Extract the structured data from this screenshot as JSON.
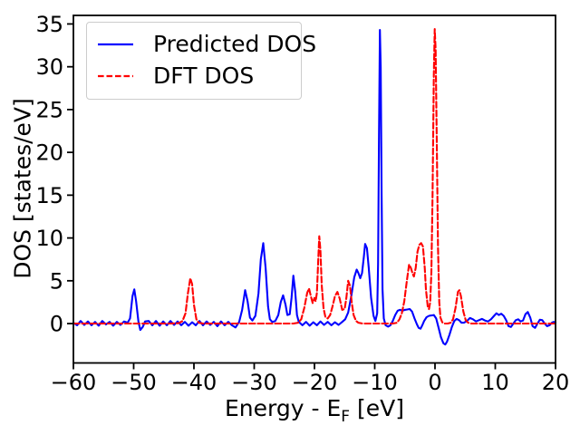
{
  "chart_data": {
    "type": "line",
    "title": "",
    "xlabel": "Energy - E_F [eV]",
    "xlabel_parts": {
      "main": "Energy - E",
      "sub": "F",
      "rest": " [eV]"
    },
    "ylabel": "DOS [states/eV]",
    "xlim": [
      -60,
      20
    ],
    "ylim": [
      -4.6,
      36
    ],
    "xticks": [
      -60,
      -50,
      -40,
      -30,
      -20,
      -10,
      0,
      10,
      20
    ],
    "yticks": [
      0,
      5,
      10,
      15,
      20,
      25,
      30,
      35
    ],
    "grid": false,
    "legend_position": "upper left",
    "background_color": "#ffffff",
    "axis_color": "#000000",
    "series": [
      {
        "name": "Predicted DOS",
        "color": "#0000ff",
        "style": "solid",
        "points": [
          [
            -60,
            0.1
          ],
          [
            -59.4,
            -0.2
          ],
          [
            -58.8,
            0.3
          ],
          [
            -58.2,
            -0.15
          ],
          [
            -57.6,
            0.25
          ],
          [
            -57,
            -0.2
          ],
          [
            -56.4,
            0.2
          ],
          [
            -55.8,
            -0.25
          ],
          [
            -55.2,
            0.3
          ],
          [
            -54.6,
            -0.1
          ],
          [
            -54,
            0.2
          ],
          [
            -53.4,
            -0.25
          ],
          [
            -52.8,
            0.2
          ],
          [
            -52.2,
            -0.15
          ],
          [
            -51.6,
            0.25
          ],
          [
            -51,
            0.1
          ],
          [
            -50.6,
            0.6
          ],
          [
            -50.2,
            3.2
          ],
          [
            -49.9,
            4.0
          ],
          [
            -49.6,
            2.6
          ],
          [
            -49.2,
            0.2
          ],
          [
            -48.9,
            -0.75
          ],
          [
            -48.5,
            -0.4
          ],
          [
            -48.1,
            0.25
          ],
          [
            -47.5,
            0.3
          ],
          [
            -46.9,
            -0.2
          ],
          [
            -46.3,
            0.3
          ],
          [
            -45.7,
            -0.25
          ],
          [
            -45.1,
            0.25
          ],
          [
            -44.5,
            -0.2
          ],
          [
            -43.9,
            0.3
          ],
          [
            -43.3,
            -0.15
          ],
          [
            -42.7,
            0.25
          ],
          [
            -42.1,
            -0.2
          ],
          [
            -41.5,
            0.2
          ],
          [
            -40.9,
            -0.25
          ],
          [
            -40.3,
            0.15
          ],
          [
            -39.7,
            -0.2
          ],
          [
            -39.1,
            0.3
          ],
          [
            -38.5,
            -0.2
          ],
          [
            -37.9,
            0.25
          ],
          [
            -37.3,
            -0.15
          ],
          [
            -36.7,
            0.2
          ],
          [
            -36.1,
            -0.3
          ],
          [
            -35.5,
            0.25
          ],
          [
            -34.9,
            -0.2
          ],
          [
            -34.3,
            0.2
          ],
          [
            -33.7,
            -0.2
          ],
          [
            -33.1,
            -0.45
          ],
          [
            -32.5,
            0.2
          ],
          [
            -32,
            1.6
          ],
          [
            -31.5,
            3.9
          ],
          [
            -31.1,
            2.6
          ],
          [
            -30.7,
            0.7
          ],
          [
            -30.3,
            0.35
          ],
          [
            -29.8,
            0.9
          ],
          [
            -29.3,
            3.5
          ],
          [
            -28.9,
            7.5
          ],
          [
            -28.5,
            9.4
          ],
          [
            -28.1,
            6.5
          ],
          [
            -27.7,
            2
          ],
          [
            -27.4,
            0.5
          ],
          [
            -27,
            0.2
          ],
          [
            -26.5,
            0.3
          ],
          [
            -26,
            1
          ],
          [
            -25.6,
            2.5
          ],
          [
            -25.2,
            3.3
          ],
          [
            -24.8,
            2.2
          ],
          [
            -24.5,
            1
          ],
          [
            -24.1,
            1.1
          ],
          [
            -23.8,
            3
          ],
          [
            -23.5,
            5.6
          ],
          [
            -23.2,
            3.8
          ],
          [
            -22.9,
            1
          ],
          [
            -22.6,
            0.2
          ],
          [
            -22,
            -0.2
          ],
          [
            -21.4,
            0.2
          ],
          [
            -20.8,
            -0.25
          ],
          [
            -20.2,
            0.15
          ],
          [
            -19.6,
            -0.2
          ],
          [
            -19,
            0.25
          ],
          [
            -18.4,
            -0.15
          ],
          [
            -17.8,
            0.2
          ],
          [
            -17.2,
            -0.2
          ],
          [
            -16.6,
            0.15
          ],
          [
            -16,
            -0.15
          ],
          [
            -15.4,
            0.2
          ],
          [
            -14.9,
            0.5
          ],
          [
            -14.4,
            1.3
          ],
          [
            -13.9,
            3.2
          ],
          [
            -13.4,
            5.4
          ],
          [
            -13,
            6.3
          ],
          [
            -12.7,
            5.9
          ],
          [
            -12.4,
            5.3
          ],
          [
            -12.1,
            5.9
          ],
          [
            -11.8,
            7.8
          ],
          [
            -11.6,
            9.3
          ],
          [
            -11.3,
            8.8
          ],
          [
            -11,
            6.5
          ],
          [
            -10.6,
            3
          ],
          [
            -10.2,
            0.9
          ],
          [
            -9.9,
            0.3
          ],
          [
            -9.6,
            1.2
          ],
          [
            -9.45,
            7
          ],
          [
            -9.3,
            22
          ],
          [
            -9.15,
            34.3
          ],
          [
            -9,
            30
          ],
          [
            -8.85,
            15
          ],
          [
            -8.7,
            4
          ],
          [
            -8.5,
            0.6
          ],
          [
            -8.2,
            -0.2
          ],
          [
            -7.8,
            -0.35
          ],
          [
            -7.4,
            -0.2
          ],
          [
            -7,
            0.3
          ],
          [
            -6.6,
            1
          ],
          [
            -6.2,
            1.5
          ],
          [
            -5.8,
            1.6
          ],
          [
            -5.4,
            1.5
          ],
          [
            -5,
            1.6
          ],
          [
            -4.6,
            1.65
          ],
          [
            -4.2,
            1.7
          ],
          [
            -3.8,
            1.4
          ],
          [
            -3.4,
            0.6
          ],
          [
            -3,
            -0.1
          ],
          [
            -2.7,
            -0.5
          ],
          [
            -2.4,
            -0.6
          ],
          [
            -2.1,
            -0.2
          ],
          [
            -1.8,
            0.3
          ],
          [
            -1.4,
            0.75
          ],
          [
            -1,
            0.9
          ],
          [
            -0.6,
            0.95
          ],
          [
            -0.2,
            1
          ],
          [
            0.2,
            0.6
          ],
          [
            0.6,
            -0.5
          ],
          [
            1,
            -1.6
          ],
          [
            1.4,
            -2.3
          ],
          [
            1.7,
            -2.45
          ],
          [
            2,
            -2.1
          ],
          [
            2.4,
            -1.3
          ],
          [
            2.8,
            -0.4
          ],
          [
            3.2,
            0.3
          ],
          [
            3.6,
            0.55
          ],
          [
            4,
            0.4
          ],
          [
            4.4,
            0.1
          ],
          [
            4.8,
            0.1
          ],
          [
            5.3,
            0.3
          ],
          [
            5.8,
            0.65
          ],
          [
            6.3,
            0.5
          ],
          [
            6.8,
            0.25
          ],
          [
            7.3,
            0.4
          ],
          [
            7.8,
            0.55
          ],
          [
            8.3,
            0.35
          ],
          [
            8.8,
            0.25
          ],
          [
            9.3,
            0.5
          ],
          [
            9.8,
            0.9
          ],
          [
            10.2,
            1.2
          ],
          [
            10.6,
            1
          ],
          [
            11,
            1.15
          ],
          [
            11.4,
            0.9
          ],
          [
            11.8,
            0.4
          ],
          [
            12.2,
            -0.3
          ],
          [
            12.6,
            -0.4
          ],
          [
            13,
            0
          ],
          [
            13.4,
            0.4
          ],
          [
            13.8,
            0.5
          ],
          [
            14.2,
            0.25
          ],
          [
            14.6,
            0.35
          ],
          [
            15,
            1.1
          ],
          [
            15.4,
            1.35
          ],
          [
            15.8,
            0.7
          ],
          [
            16.2,
            -0.3
          ],
          [
            16.6,
            -0.5
          ],
          [
            17,
            0
          ],
          [
            17.4,
            0.45
          ],
          [
            17.8,
            0.4
          ],
          [
            18.2,
            0
          ],
          [
            18.6,
            -0.3
          ],
          [
            19,
            -0.2
          ],
          [
            19.4,
            0.1
          ],
          [
            19.7,
            0.2
          ],
          [
            20,
            0.1
          ]
        ]
      },
      {
        "name": "DFT DOS",
        "color": "#ff0000",
        "style": "dashed",
        "points": [
          [
            -60,
            0
          ],
          [
            -58,
            0
          ],
          [
            -56,
            0
          ],
          [
            -54,
            0
          ],
          [
            -52,
            0
          ],
          [
            -50,
            0
          ],
          [
            -48,
            0
          ],
          [
            -46,
            0
          ],
          [
            -44,
            0
          ],
          [
            -42.5,
            0.05
          ],
          [
            -41.9,
            0.3
          ],
          [
            -41.4,
            1.2
          ],
          [
            -41,
            3.5
          ],
          [
            -40.6,
            5.3
          ],
          [
            -40.3,
            4.6
          ],
          [
            -40,
            2.2
          ],
          [
            -39.6,
            0.5
          ],
          [
            -39.2,
            0.1
          ],
          [
            -38.5,
            0
          ],
          [
            -37,
            0
          ],
          [
            -35,
            0
          ],
          [
            -33,
            0
          ],
          [
            -31,
            0
          ],
          [
            -29,
            0
          ],
          [
            -27,
            0
          ],
          [
            -25,
            0
          ],
          [
            -23.5,
            0
          ],
          [
            -22.7,
            0.1
          ],
          [
            -22.2,
            0.5
          ],
          [
            -21.7,
            1.8
          ],
          [
            -21.2,
            3.6
          ],
          [
            -20.9,
            4.1
          ],
          [
            -20.6,
            3.2
          ],
          [
            -20.3,
            2.4
          ],
          [
            -20,
            3
          ],
          [
            -19.8,
            2.6
          ],
          [
            -19.6,
            3.6
          ],
          [
            -19.4,
            7
          ],
          [
            -19.2,
            10.2
          ],
          [
            -19,
            8.5
          ],
          [
            -18.8,
            4.5
          ],
          [
            -18.5,
            1.8
          ],
          [
            -18.2,
            0.8
          ],
          [
            -17.8,
            0.6
          ],
          [
            -17.4,
            1
          ],
          [
            -17,
            2
          ],
          [
            -16.6,
            3.2
          ],
          [
            -16.2,
            3.7
          ],
          [
            -15.8,
            2.9
          ],
          [
            -15.4,
            1.6
          ],
          [
            -15,
            1.7
          ],
          [
            -14.7,
            3
          ],
          [
            -14.4,
            5
          ],
          [
            -14.1,
            4.4
          ],
          [
            -13.8,
            2.4
          ],
          [
            -13.5,
            1
          ],
          [
            -13.1,
            0.3
          ],
          [
            -12.7,
            0.1
          ],
          [
            -12,
            0
          ],
          [
            -11,
            0
          ],
          [
            -10,
            0
          ],
          [
            -9,
            0
          ],
          [
            -8,
            0
          ],
          [
            -7,
            0
          ],
          [
            -6.3,
            0.1
          ],
          [
            -5.9,
            0.5
          ],
          [
            -5.5,
            1.2
          ],
          [
            -5.1,
            2.6
          ],
          [
            -4.7,
            4.8
          ],
          [
            -4.3,
            6.9
          ],
          [
            -4,
            6.5
          ],
          [
            -3.7,
            5.8
          ],
          [
            -3.5,
            5.5
          ],
          [
            -3.2,
            6.5
          ],
          [
            -2.9,
            8.4
          ],
          [
            -2.6,
            9.2
          ],
          [
            -2.3,
            9.4
          ],
          [
            -2,
            9
          ],
          [
            -1.7,
            6.5
          ],
          [
            -1.5,
            4
          ],
          [
            -1.2,
            2
          ],
          [
            -1,
            1.7
          ],
          [
            -0.8,
            2.5
          ],
          [
            -0.6,
            6
          ],
          [
            -0.4,
            15
          ],
          [
            -0.2,
            29
          ],
          [
            -0.05,
            34.4
          ],
          [
            0.1,
            32
          ],
          [
            0.3,
            21
          ],
          [
            0.5,
            9
          ],
          [
            0.7,
            2.5
          ],
          [
            0.9,
            0.7
          ],
          [
            1.2,
            0.15
          ],
          [
            1.6,
            0
          ],
          [
            2.1,
            0
          ],
          [
            2.6,
            0.1
          ],
          [
            3,
            0.5
          ],
          [
            3.4,
            1.8
          ],
          [
            3.8,
            3.7
          ],
          [
            4.05,
            3.9
          ],
          [
            4.3,
            3.2
          ],
          [
            4.7,
            1.4
          ],
          [
            5.1,
            0.4
          ],
          [
            5.5,
            0.1
          ],
          [
            6,
            0
          ],
          [
            7,
            0
          ],
          [
            9,
            0
          ],
          [
            11,
            0
          ],
          [
            13,
            0
          ],
          [
            15,
            0
          ],
          [
            17,
            0
          ],
          [
            19,
            0
          ],
          [
            20,
            0
          ]
        ]
      }
    ]
  },
  "legend": {
    "items": [
      {
        "label": "Predicted DOS"
      },
      {
        "label": "DFT DOS"
      }
    ]
  }
}
